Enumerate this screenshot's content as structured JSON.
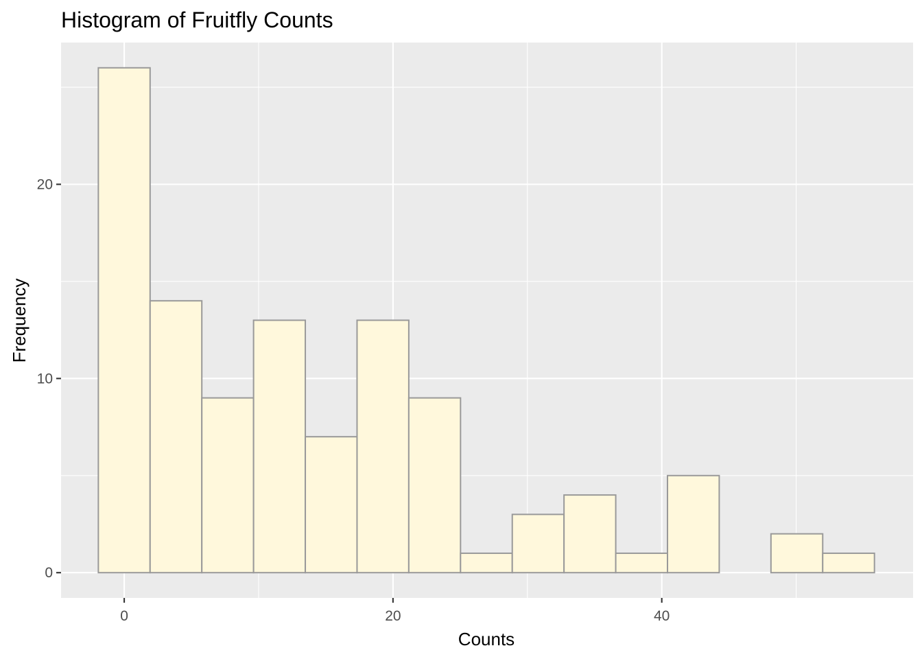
{
  "chart_data": {
    "type": "bar",
    "title": "Histogram of Fruitfly Counts",
    "xlabel": "Counts",
    "ylabel": "Frequency",
    "bin_width": 3.85,
    "bins": [
      {
        "start": -1.925,
        "end": 1.925,
        "count": 26
      },
      {
        "start": 1.925,
        "end": 5.775,
        "count": 14
      },
      {
        "start": 5.775,
        "end": 9.625,
        "count": 9
      },
      {
        "start": 9.625,
        "end": 13.475,
        "count": 13
      },
      {
        "start": 13.475,
        "end": 17.325,
        "count": 7
      },
      {
        "start": 17.325,
        "end": 21.175,
        "count": 13
      },
      {
        "start": 21.175,
        "end": 25.025,
        "count": 9
      },
      {
        "start": 25.025,
        "end": 28.875,
        "count": 1
      },
      {
        "start": 28.875,
        "end": 32.725,
        "count": 3
      },
      {
        "start": 32.725,
        "end": 36.575,
        "count": 4
      },
      {
        "start": 36.575,
        "end": 40.425,
        "count": 1
      },
      {
        "start": 40.425,
        "end": 44.275,
        "count": 5
      },
      {
        "start": 44.275,
        "end": 48.125,
        "count": 0
      },
      {
        "start": 48.125,
        "end": 51.975,
        "count": 2
      },
      {
        "start": 51.975,
        "end": 55.825,
        "count": 1
      }
    ],
    "xlim": [
      -4.7,
      58.7
    ],
    "ylim": [
      -1.3,
      27.3
    ],
    "x_ticks": [
      0,
      20,
      40
    ],
    "x_tick_labels": [
      "0",
      "20",
      "40"
    ],
    "y_ticks": [
      0,
      10,
      20
    ],
    "y_tick_labels": [
      "0",
      "10",
      "20"
    ],
    "x_minor_ticks": [
      10,
      30,
      50
    ],
    "y_minor_ticks": [
      5,
      15,
      25
    ],
    "grid": true,
    "colors": {
      "bar_fill": "#fff8dc",
      "bar_stroke": "#999999",
      "panel": "#ebebeb",
      "grid": "#ffffff"
    }
  }
}
